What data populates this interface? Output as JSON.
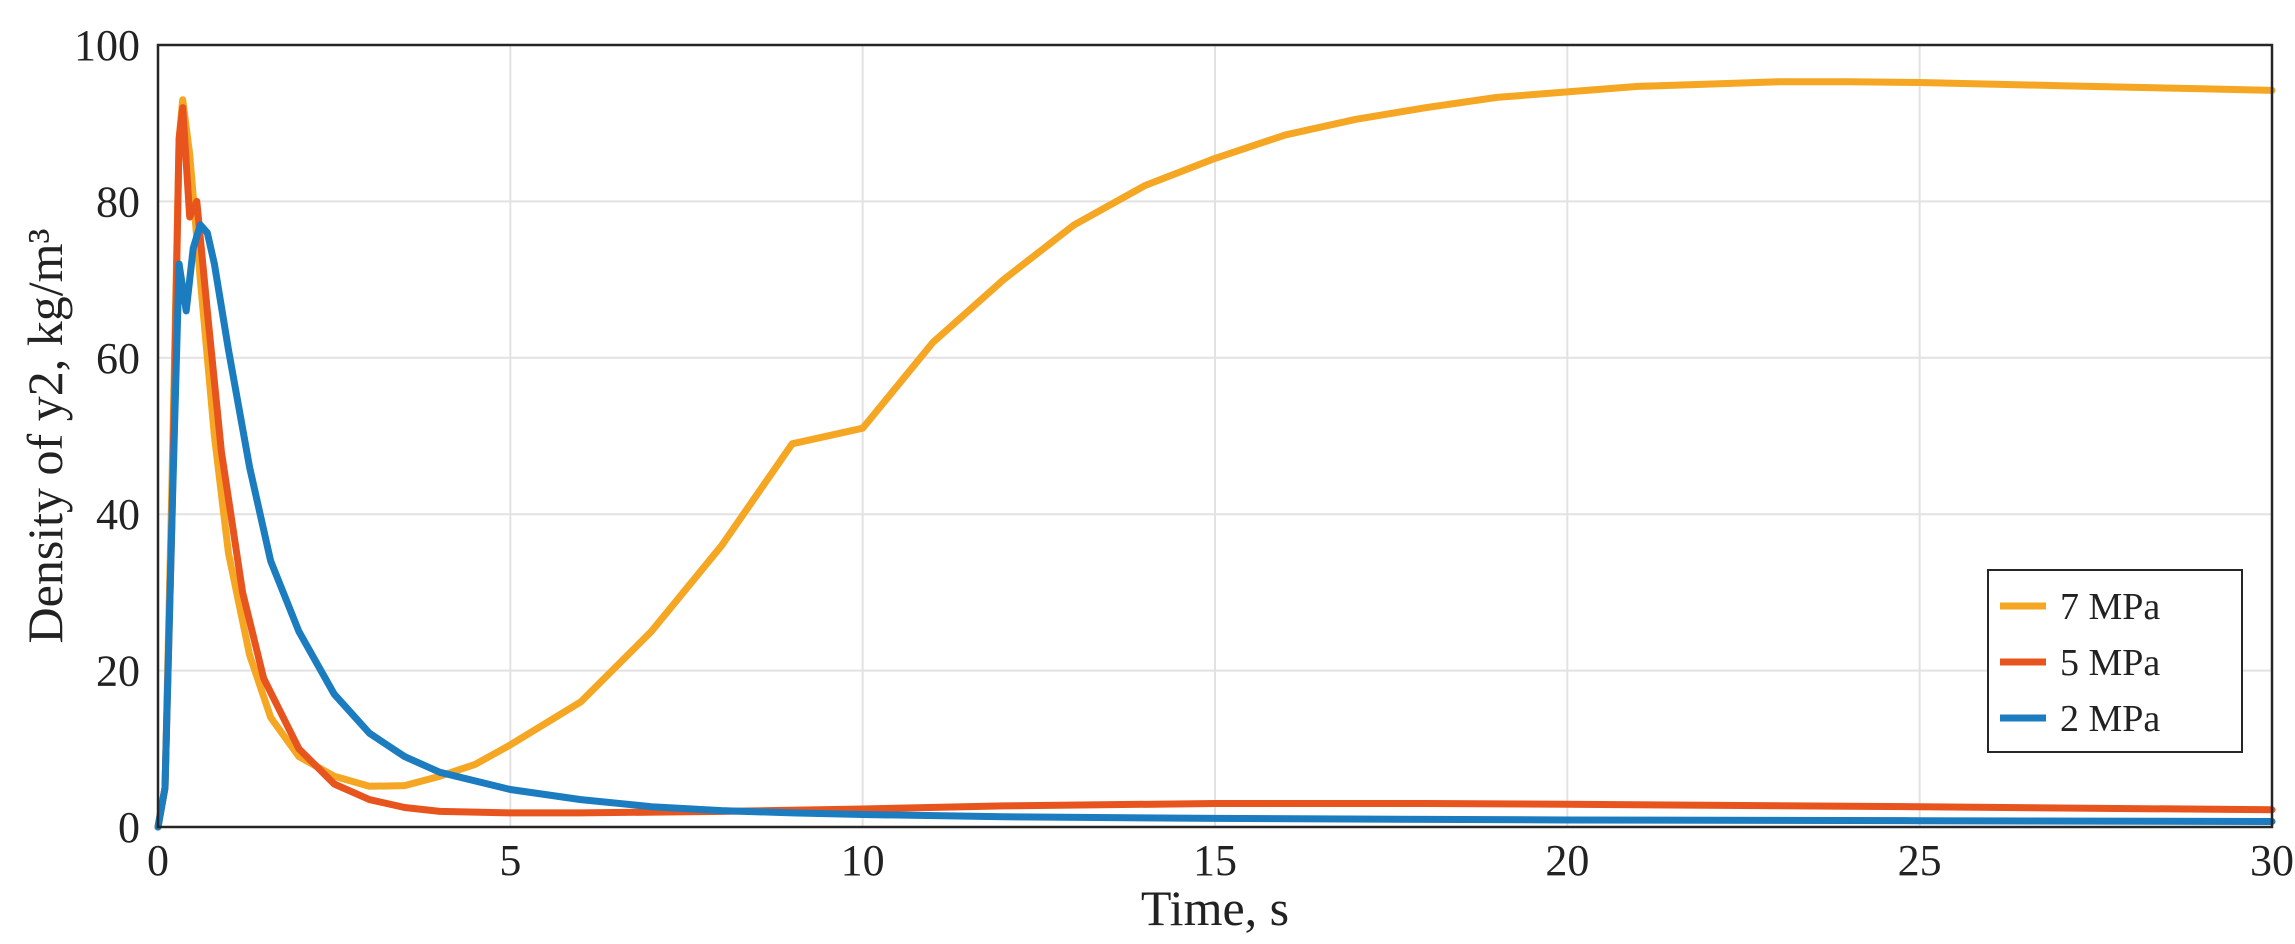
{
  "chart_data": {
    "type": "line",
    "title": "",
    "xlabel": "Time, s",
    "ylabel": "Density of y2, kg/m³",
    "xlim": [
      0,
      30
    ],
    "ylim": [
      0,
      100
    ],
    "xticks": [
      0,
      5,
      10,
      15,
      20,
      25,
      30
    ],
    "yticks": [
      0,
      20,
      40,
      60,
      80,
      100
    ],
    "grid": true,
    "legend_position": "lower-right",
    "series": [
      {
        "name": "7 MPa",
        "color": "#F5A623",
        "x": [
          0,
          0.1,
          0.2,
          0.3,
          0.35,
          0.45,
          0.6,
          0.8,
          1.0,
          1.3,
          1.6,
          2.0,
          2.5,
          3.0,
          3.5,
          4.0,
          4.5,
          5.0,
          6.0,
          7.0,
          8.0,
          9.0,
          10.0,
          11.0,
          12.0,
          13.0,
          14.0,
          15.0,
          16.0,
          17.0,
          18.0,
          19.0,
          20.0,
          21.0,
          22.0,
          23.0,
          24.0,
          25.0,
          26.0,
          27.0,
          28.0,
          29.0,
          30.0
        ],
        "y": [
          0,
          5,
          45,
          88,
          93,
          86,
          70,
          50,
          35,
          22,
          14,
          9,
          6.5,
          5.2,
          5.3,
          6.5,
          8,
          10.5,
          16,
          25,
          36,
          49,
          51,
          62,
          70,
          77,
          82,
          85.5,
          88.5,
          90.5,
          92,
          93.3,
          94,
          94.7,
          95,
          95.3,
          95.3,
          95.2,
          95,
          94.8,
          94.6,
          94.4,
          94.2
        ]
      },
      {
        "name": "5 MPa",
        "color": "#E8541E",
        "x": [
          0,
          0.1,
          0.2,
          0.3,
          0.35,
          0.45,
          0.55,
          0.7,
          0.9,
          1.2,
          1.5,
          2.0,
          2.5,
          3.0,
          3.5,
          4.0,
          5.0,
          6.0,
          8.0,
          10.0,
          12.0,
          15.0,
          18.0,
          20.0,
          25.0,
          30.0
        ],
        "y": [
          0,
          5,
          40,
          88,
          92,
          78,
          80,
          66,
          48,
          30,
          19,
          10,
          5.5,
          3.5,
          2.5,
          2.0,
          1.8,
          1.8,
          2.0,
          2.3,
          2.7,
          3.0,
          3.0,
          2.9,
          2.6,
          2.2
        ]
      },
      {
        "name": "2 MPa",
        "color": "#1B7CC0",
        "x": [
          0,
          0.1,
          0.2,
          0.3,
          0.4,
          0.5,
          0.6,
          0.7,
          0.8,
          1.0,
          1.3,
          1.6,
          2.0,
          2.5,
          3.0,
          3.5,
          4.0,
          5.0,
          6.0,
          7.0,
          8.0,
          9.0,
          10.0,
          12.0,
          15.0,
          20.0,
          25.0,
          30.0
        ],
        "y": [
          0,
          5,
          40,
          72,
          66,
          74,
          77,
          76,
          72,
          61,
          46,
          34,
          25,
          17,
          12,
          9,
          7,
          4.8,
          3.5,
          2.6,
          2.1,
          1.8,
          1.6,
          1.3,
          1.1,
          0.9,
          0.8,
          0.7
        ]
      }
    ]
  }
}
